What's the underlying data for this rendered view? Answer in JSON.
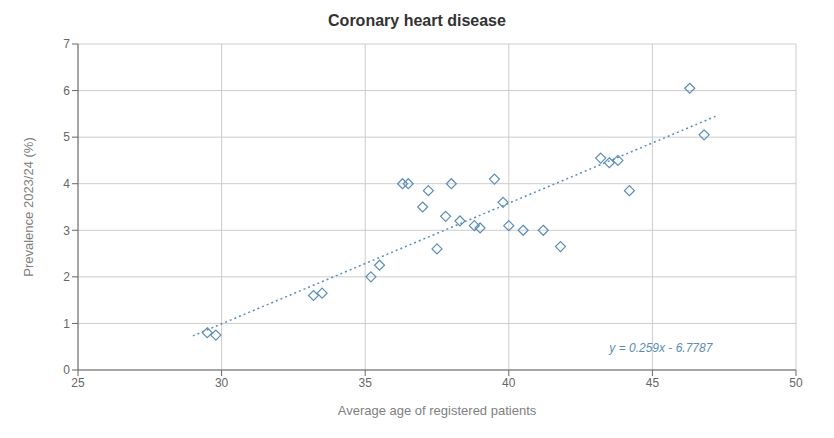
{
  "chart_data": {
    "type": "scatter",
    "title": "Coronary heart disease",
    "xlabel": "Average age of registered patients",
    "ylabel": "Prevalence 2023/24 (%)",
    "xlim": [
      25,
      50
    ],
    "ylim": [
      0,
      7
    ],
    "xticks": [
      25,
      30,
      35,
      40,
      45,
      50
    ],
    "yticks": [
      0,
      1,
      2,
      3,
      4,
      5,
      6,
      7
    ],
    "grid": true,
    "series": [
      {
        "type": "scatter",
        "marker": "diamond",
        "color": "#5b8db8",
        "x": [
          29.5,
          29.8,
          33.2,
          33.5,
          35.2,
          35.5,
          36.3,
          36.5,
          37.0,
          37.2,
          37.5,
          37.8,
          38.0,
          38.3,
          38.8,
          39.0,
          39.5,
          39.8,
          40.0,
          40.5,
          41.2,
          41.8,
          43.2,
          43.5,
          43.8,
          44.2,
          46.3,
          46.8
        ],
        "values": [
          0.8,
          0.75,
          1.6,
          1.65,
          2.0,
          2.25,
          4.0,
          4.0,
          3.5,
          3.85,
          2.6,
          3.3,
          4.0,
          3.2,
          3.1,
          3.05,
          4.1,
          3.6,
          3.1,
          3.0,
          3.0,
          2.65,
          4.55,
          4.45,
          4.5,
          3.85,
          6.05,
          5.05
        ]
      },
      {
        "type": "line",
        "line_style": "dotted",
        "color": "#5b8db8",
        "x": [
          29.0,
          47.2
        ],
        "values": [
          0.7323,
          5.4461
        ]
      }
    ],
    "annotations": [
      {
        "text": "y = 0.259x - 6.7787",
        "x": 43.5,
        "y": 0.32,
        "color": "#5b8db8"
      }
    ]
  }
}
